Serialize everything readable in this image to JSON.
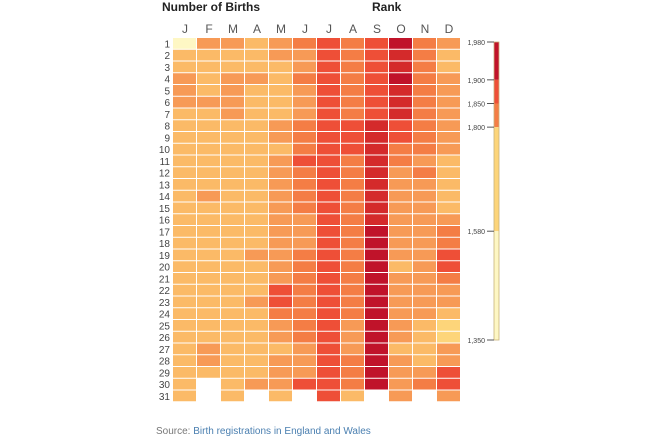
{
  "header": {
    "births_title": "Number of Births",
    "rank_title": "Rank"
  },
  "source": {
    "prefix": "Source: ",
    "link": "Birth registrations in England and Wales"
  },
  "colors": {
    "c0": "#fef7c4",
    "c1": "#fdd57a",
    "c2": "#fbba67",
    "c3": "#f79a56",
    "c4": "#f47d45",
    "c5": "#ee4f37",
    "c6": "#d42a2b",
    "c7": "#c0132a",
    "empty": "#ffffff"
  },
  "chart_data": {
    "type": "heatmap",
    "title": "Number of Births",
    "legend_title": "Rank",
    "x_categories": [
      "J",
      "F",
      "M",
      "A",
      "M",
      "J",
      "J",
      "A",
      "S",
      "O",
      "N",
      "D"
    ],
    "y_categories": [
      "1",
      "2",
      "3",
      "4",
      "5",
      "6",
      "7",
      "8",
      "9",
      "10",
      "11",
      "12",
      "13",
      "14",
      "15",
      "16",
      "17",
      "18",
      "19",
      "20",
      "21",
      "22",
      "23",
      "24",
      "25",
      "26",
      "27",
      "28",
      "29",
      "30",
      "31"
    ],
    "color_scale": {
      "min": 1350,
      "max": 1980,
      "ticks": [
        1980,
        1900,
        1850,
        1800,
        1580,
        1350
      ],
      "tick_labels": [
        "1,980",
        "1,900",
        "1,850",
        "1,800",
        "1,580",
        "1,350"
      ]
    },
    "grid_levels": [
      [
        0,
        3,
        3,
        2,
        3,
        4,
        5,
        4,
        5,
        7,
        4,
        3
      ],
      [
        2,
        2,
        2,
        2,
        3,
        3,
        5,
        4,
        5,
        6,
        4,
        2
      ],
      [
        2,
        2,
        2,
        2,
        2,
        3,
        5,
        4,
        5,
        6,
        4,
        2
      ],
      [
        3,
        2,
        3,
        3,
        2,
        4,
        5,
        4,
        5,
        7,
        4,
        3
      ],
      [
        3,
        2,
        3,
        2,
        2,
        3,
        5,
        4,
        5,
        6,
        4,
        3
      ],
      [
        3,
        3,
        3,
        2,
        2,
        3,
        5,
        4,
        5,
        6,
        4,
        3
      ],
      [
        2,
        2,
        3,
        2,
        2,
        3,
        5,
        4,
        5,
        6,
        4,
        3
      ],
      [
        2,
        2,
        2,
        2,
        3,
        4,
        5,
        5,
        6,
        5,
        4,
        3
      ],
      [
        2,
        2,
        2,
        2,
        3,
        4,
        5,
        5,
        6,
        5,
        4,
        3
      ],
      [
        2,
        2,
        2,
        2,
        2,
        4,
        5,
        5,
        6,
        4,
        4,
        3
      ],
      [
        2,
        2,
        2,
        2,
        3,
        5,
        5,
        4,
        6,
        4,
        3,
        2
      ],
      [
        2,
        2,
        2,
        2,
        3,
        4,
        5,
        4,
        6,
        3,
        4,
        2
      ],
      [
        2,
        2,
        2,
        2,
        3,
        4,
        5,
        4,
        6,
        3,
        3,
        2
      ],
      [
        2,
        3,
        2,
        2,
        3,
        4,
        5,
        4,
        6,
        3,
        3,
        2
      ],
      [
        2,
        2,
        2,
        2,
        3,
        4,
        5,
        4,
        6,
        3,
        3,
        2
      ],
      [
        2,
        2,
        2,
        2,
        3,
        3,
        5,
        4,
        6,
        3,
        3,
        3
      ],
      [
        2,
        2,
        2,
        2,
        3,
        3,
        5,
        4,
        7,
        3,
        3,
        4
      ],
      [
        2,
        2,
        2,
        2,
        3,
        3,
        5,
        4,
        7,
        3,
        3,
        4
      ],
      [
        2,
        2,
        2,
        3,
        3,
        4,
        5,
        4,
        7,
        3,
        3,
        5
      ],
      [
        2,
        2,
        2,
        2,
        3,
        4,
        5,
        4,
        7,
        2,
        3,
        5
      ],
      [
        2,
        2,
        2,
        2,
        3,
        4,
        5,
        4,
        7,
        3,
        3,
        4
      ],
      [
        2,
        2,
        2,
        2,
        5,
        4,
        5,
        4,
        7,
        3,
        3,
        3
      ],
      [
        2,
        2,
        2,
        3,
        5,
        4,
        5,
        4,
        7,
        3,
        3,
        3
      ],
      [
        2,
        2,
        2,
        2,
        4,
        4,
        5,
        4,
        7,
        3,
        3,
        2
      ],
      [
        2,
        2,
        2,
        2,
        3,
        4,
        5,
        3,
        7,
        3,
        2,
        1
      ],
      [
        2,
        2,
        2,
        2,
        3,
        4,
        5,
        3,
        7,
        3,
        2,
        1
      ],
      [
        2,
        3,
        2,
        2,
        2,
        3,
        5,
        3,
        7,
        2,
        2,
        3
      ],
      [
        2,
        3,
        2,
        2,
        3,
        3,
        5,
        4,
        7,
        3,
        2,
        3
      ],
      [
        2,
        2,
        2,
        2,
        3,
        3,
        5,
        4,
        7,
        3,
        3,
        5
      ],
      [
        2,
        -1,
        2,
        3,
        3,
        5,
        5,
        4,
        7,
        3,
        4,
        5
      ],
      [
        2,
        -1,
        2,
        -1,
        2,
        -1,
        5,
        2,
        -1,
        3,
        -1,
        3
      ]
    ]
  }
}
